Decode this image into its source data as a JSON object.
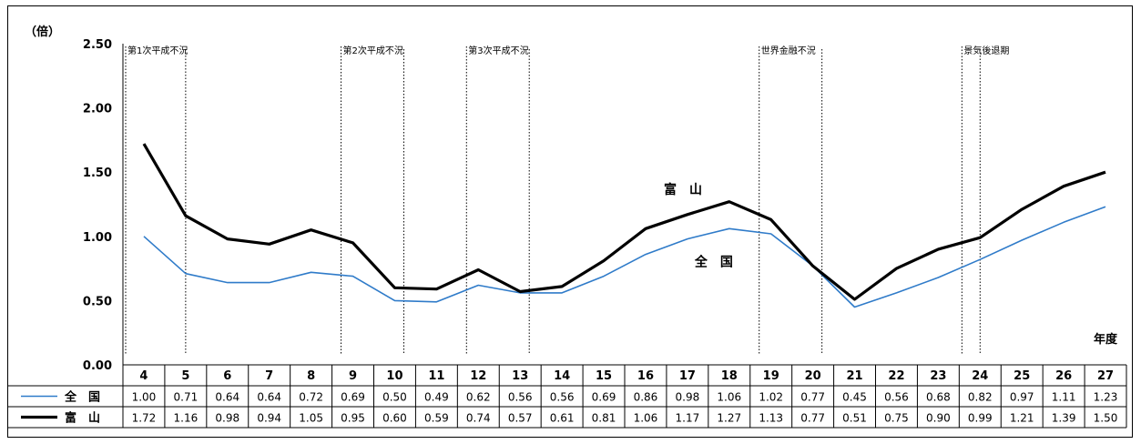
{
  "chart_data": {
    "type": "line",
    "y_unit_label": "（倍）",
    "xlabel": "年度",
    "ylim": [
      0,
      2.5
    ],
    "yticks": [
      "0.00",
      "0.50",
      "1.00",
      "1.50",
      "2.00",
      "2.50"
    ],
    "categories": [
      "4",
      "5",
      "6",
      "7",
      "8",
      "9",
      "10",
      "11",
      "12",
      "13",
      "14",
      "15",
      "16",
      "17",
      "18",
      "19",
      "20",
      "21",
      "22",
      "23",
      "24",
      "25",
      "26",
      "27"
    ],
    "series": [
      {
        "name": "全　国",
        "chart_label": "全　国",
        "color": "#2F7BC9",
        "values": [
          1.0,
          0.71,
          0.64,
          0.64,
          0.72,
          0.69,
          0.5,
          0.49,
          0.62,
          0.56,
          0.56,
          0.69,
          0.86,
          0.98,
          1.06,
          1.02,
          0.77,
          0.45,
          0.56,
          0.68,
          0.82,
          0.97,
          1.11,
          1.23
        ],
        "table_values": [
          "1.00",
          "0.71",
          "0.64",
          "0.64",
          "0.72",
          "0.69",
          "0.50",
          "0.49",
          "0.62",
          "0.56",
          "0.56",
          "0.69",
          "0.86",
          "0.98",
          "1.06",
          "1.02",
          "0.77",
          "0.45",
          "0.56",
          "0.68",
          "0.82",
          "0.97",
          "1.11",
          "1.23"
        ]
      },
      {
        "name": "富　山",
        "chart_label": "富　山",
        "color": "#000000",
        "values": [
          1.72,
          1.16,
          0.98,
          0.94,
          1.05,
          0.95,
          0.6,
          0.59,
          0.74,
          0.57,
          0.61,
          0.81,
          1.06,
          1.17,
          1.27,
          1.13,
          0.77,
          0.51,
          0.75,
          0.9,
          0.99,
          1.21,
          1.39,
          1.5
        ],
        "table_values": [
          "1.72",
          "1.16",
          "0.98",
          "0.94",
          "1.05",
          "0.95",
          "0.60",
          "0.59",
          "0.74",
          "0.57",
          "0.61",
          "0.81",
          "1.06",
          "1.17",
          "1.27",
          "1.13",
          "0.77",
          "0.51",
          "0.75",
          "0.90",
          "0.99",
          "1.21",
          "1.39",
          "1.50"
        ]
      }
    ],
    "recessions": [
      {
        "label": "第1次平成不況",
        "start": "5",
        "end": "5"
      },
      {
        "label": "第2次平成不況",
        "start": "9",
        "end": "10"
      },
      {
        "label": "第3次平成不況",
        "start": "12",
        "end": "13"
      },
      {
        "label": "世界金融不況",
        "start": "19",
        "end": "20"
      },
      {
        "label": "景気後退期",
        "start": "24",
        "end": "24"
      }
    ]
  }
}
